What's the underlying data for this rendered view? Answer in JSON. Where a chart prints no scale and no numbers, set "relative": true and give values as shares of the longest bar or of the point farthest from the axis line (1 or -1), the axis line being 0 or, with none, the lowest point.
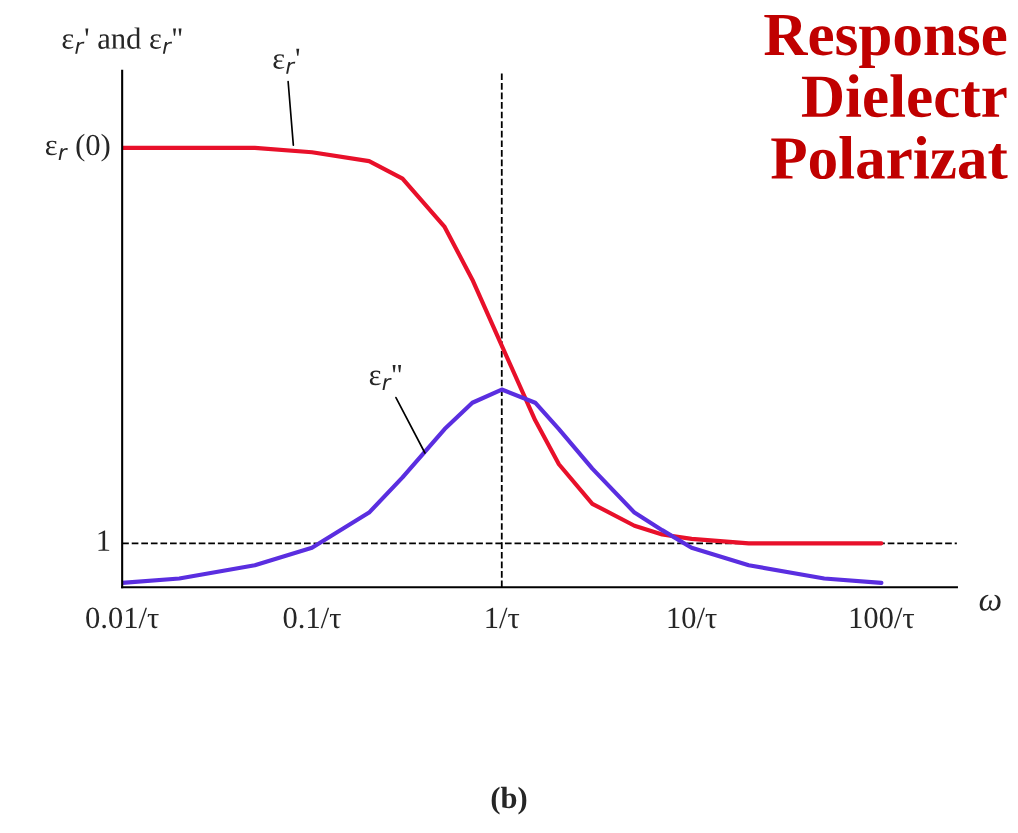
{
  "chart_data": {
    "type": "line",
    "title": "Response\nDielectr\nPolarizat",
    "xlabel": "ω",
    "ylabel": "ε$_{r}$' and ε$_{r}$''",
    "x": [
      0.01,
      0.02,
      0.05,
      0.1,
      0.2,
      0.3,
      0.5,
      0.7,
      1,
      1.5,
      2,
      3,
      5,
      7,
      10,
      20,
      50,
      100
    ],
    "series": [
      {
        "color": "#e8102a",
        "values": [
          1.0,
          1.0,
          1.0,
          0.99,
          0.97,
          0.93,
          0.82,
          0.7,
          0.55,
          0.38,
          0.28,
          0.19,
          0.14,
          0.12,
          0.11,
          0.1,
          0.1,
          0.1
        ]
      },
      {
        "color": "#5a2ee0",
        "values": [
          0.01,
          0.02,
          0.05,
          0.09,
          0.17,
          0.25,
          0.36,
          0.42,
          0.45,
          0.42,
          0.36,
          0.27,
          0.17,
          0.13,
          0.09,
          0.05,
          0.02,
          0.01
        ]
      }
    ],
    "relative": true,
    "log": "x",
    "xlim": [
      0.01,
      250
    ],
    "xticks": [
      {
        "value": 0.01,
        "label": "0.01/τ"
      },
      {
        "value": 0.1,
        "label": "0.1/τ"
      },
      {
        "value": 1,
        "label": "1/τ"
      },
      {
        "value": 10,
        "label": "10/τ"
      },
      {
        "value": 100,
        "label": "100/τ"
      }
    ],
    "ref_lines": [
      {
        "axis": "y",
        "value": 0.1,
        "color": "#000000",
        "line_style": "dashed"
      },
      {
        "axis": "x",
        "value": 1,
        "color": "#000000",
        "line_style": "dashed"
      }
    ],
    "annotations": [
      {
        "text": "ε$_{r}$'",
        "x": 0.08,
        "y": 1.0
      },
      {
        "text": "ε$_{r}$''",
        "x": 0.4,
        "y": 0.3
      },
      {
        "text": "ε$_{r}$ (0)",
        "x": 0.01,
        "y": 1.0
      },
      {
        "text": "1",
        "x": 0.01,
        "y": 0.1
      },
      "(b)"
    ],
    "grid": false,
    "legend": false,
    "marker": "none",
    "line_style": "solid"
  }
}
